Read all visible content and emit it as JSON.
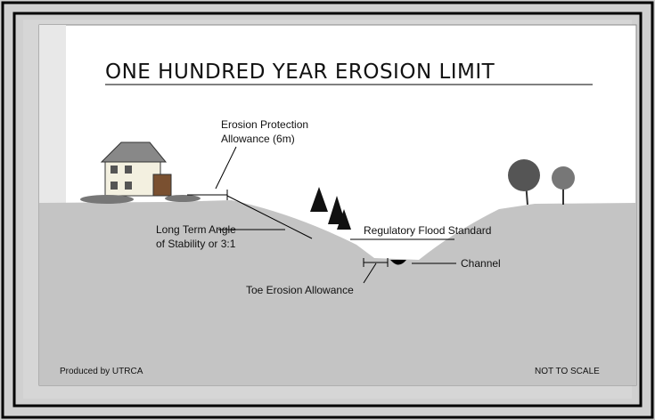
{
  "title": "ONE HUNDRED YEAR EROSION LIMIT",
  "labels": {
    "erosion_protection": [
      "Erosion Protection",
      "Allowance (6m)"
    ],
    "angle": [
      "Long Term Angle",
      "of Stability or 3:1"
    ],
    "flood": "Regulatory Flood Standard",
    "channel": "Channel",
    "toe": "Toe Erosion Allowance"
  },
  "footer": {
    "left": "Produced by UTRCA",
    "right": "NOT TO SCALE"
  }
}
